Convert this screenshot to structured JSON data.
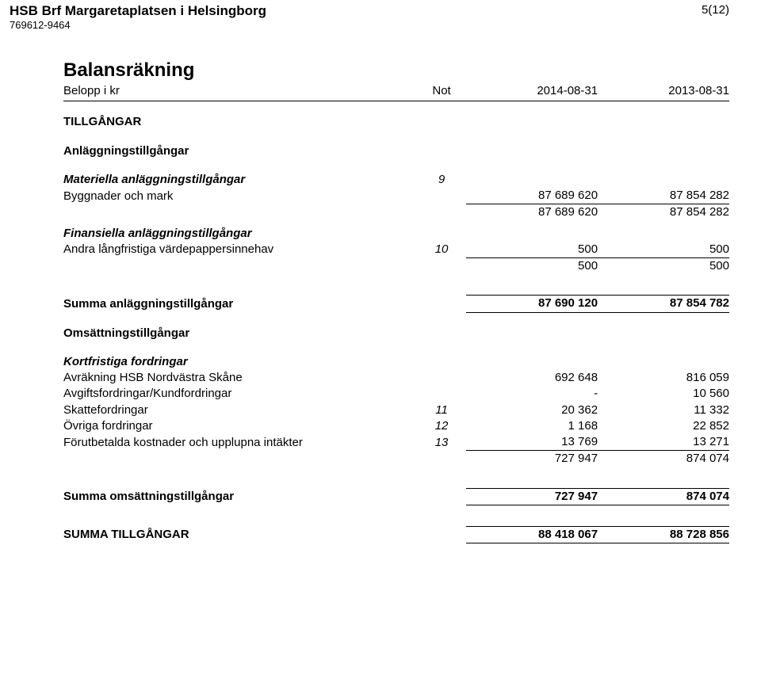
{
  "header": {
    "org_name": "HSB Brf Margaretaplatsen i Helsingborg",
    "org_id": "769612-9464",
    "page_number": "5(12)"
  },
  "title": "Balansräkning",
  "columns": {
    "label": "Belopp i kr",
    "not": "Not",
    "col1": "2014-08-31",
    "col2": "2013-08-31"
  },
  "sections": {
    "tillgangar": "TILLGÅNGAR",
    "anlaggning": "Anläggningstillgångar",
    "materiella": "Materiella anläggningstillgångar",
    "byggnader": {
      "label": "Byggnader och mark",
      "not": "9",
      "v1": "87 689 620",
      "v2": "87 854 282"
    },
    "materiella_sum": {
      "v1": "87 689 620",
      "v2": "87 854 282"
    },
    "finansiella": "Finansiella anläggningstillgångar",
    "andra": {
      "label": "Andra långfristiga värdepappersinnehav",
      "not": "10",
      "v1": "500",
      "v2": "500"
    },
    "finansiella_sum": {
      "v1": "500",
      "v2": "500"
    },
    "summa_anl": {
      "label": "Summa anläggningstillgångar",
      "v1": "87 690 120",
      "v2": "87 854 782"
    },
    "omsattning": "Omsättningstillgångar",
    "kortfristiga": "Kortfristiga fordringar",
    "avrak": {
      "label": "Avräkning HSB Nordvästra Skåne",
      "v1": "692 648",
      "v2": "816 059"
    },
    "avgift": {
      "label": "Avgiftsfordringar/Kundfordringar",
      "v1": "-",
      "v2": "10 560"
    },
    "skatt": {
      "label": "Skattefordringar",
      "not": "11",
      "v1": "20 362",
      "v2": "11 332"
    },
    "ovriga": {
      "label": "Övriga fordringar",
      "not": "12",
      "v1": "1 168",
      "v2": "22 852"
    },
    "forut": {
      "label": "Förutbetalda kostnader och upplupna intäkter",
      "not": "13",
      "v1": "13 769",
      "v2": "13 271"
    },
    "kort_sum": {
      "v1": "727 947",
      "v2": "874 074"
    },
    "summa_oms": {
      "label": "Summa omsättningstillgångar",
      "v1": "727 947",
      "v2": "874 074"
    },
    "summa_tot": {
      "label": "SUMMA TILLGÅNGAR",
      "v1": "88 418 067",
      "v2": "88 728 856"
    }
  }
}
